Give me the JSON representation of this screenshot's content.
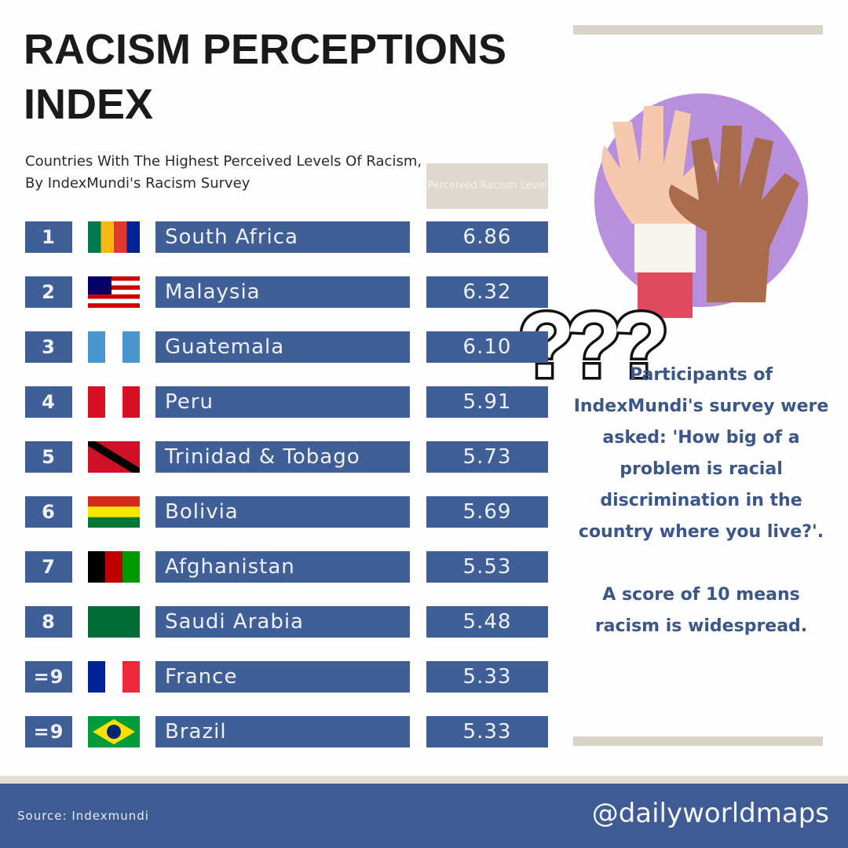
{
  "header": {
    "title": "RACISM PERCEPTIONS INDEX",
    "subtitle": "Countries With The Highest Perceived Levels Of Racism, By IndexMundi's Racism Survey"
  },
  "table": {
    "value_header": "Perceived Racism Level",
    "rows": [
      [
        "1",
        "South Africa",
        "6.86"
      ],
      [
        "2",
        "Malaysia",
        "6.32"
      ],
      [
        "3",
        "Guatemala",
        "6.10"
      ],
      [
        "4",
        "Peru",
        "5.91"
      ],
      [
        "5",
        "Trinidad & Tobago",
        "5.73"
      ],
      [
        "6",
        "Bolivia",
        "5.69"
      ],
      [
        "7",
        "Afghanistan",
        "5.53"
      ],
      [
        "8",
        "Saudi Arabia",
        "5.48"
      ],
      [
        "=9",
        "France",
        "5.33"
      ],
      [
        "=9",
        "Brazil",
        "5.33"
      ]
    ]
  },
  "annotation": "???",
  "note": {
    "question": "Participants of IndexMundi's survey were asked: 'How big of a problem is racial discrimination in the country where you live?'.",
    "scale": "A score of 10 means racism is widespread."
  },
  "footer": {
    "source": "Source: Indexmundi",
    "handle": "@dailyworldmaps"
  }
}
